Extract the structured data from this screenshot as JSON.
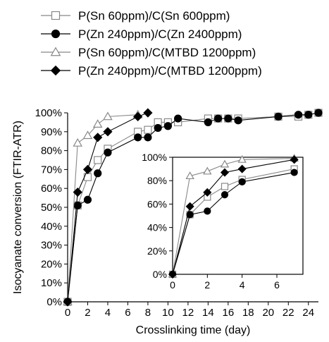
{
  "chart_data": [
    {
      "type": "line",
      "panel": "main",
      "xlabel": "Crosslinking time (day)",
      "ylabel": "Isocyanate conversion (FTIR-ATR)",
      "xlim": [
        0,
        25
      ],
      "ylim": [
        0,
        100
      ],
      "xticks": [
        0,
        2,
        4,
        6,
        8,
        10,
        12,
        14,
        16,
        18,
        20,
        22,
        24
      ],
      "xtick_labels": [
        "0",
        "2",
        "4",
        "6",
        "8",
        "10",
        "12",
        "14",
        "16",
        "18",
        "20",
        "22",
        "24"
      ],
      "yticks": [
        0,
        10,
        20,
        30,
        40,
        50,
        60,
        70,
        80,
        90,
        100
      ],
      "ytick_labels": [
        "0%",
        "10%",
        "20%",
        "30%",
        "40%",
        "50%",
        "60%",
        "70%",
        "80%",
        "90%",
        "100%"
      ],
      "legend_position": "top",
      "grid": false,
      "series": [
        {
          "name": "P(Sn 60ppm)/C(Sn 600ppm)",
          "marker": "square-open",
          "color": "#888888",
          "x": [
            0,
            1,
            2,
            3,
            4,
            7,
            8,
            9,
            10,
            11,
            14,
            15,
            16,
            17,
            21,
            23,
            24,
            25
          ],
          "y": [
            0,
            51,
            66,
            75,
            81,
            90,
            91,
            95,
            95,
            95,
            97,
            97,
            97,
            97,
            98,
            98,
            99,
            100
          ]
        },
        {
          "name": "P(Zn 240ppm)/C(Zn 2400ppm)",
          "marker": "circle-filled",
          "color": "#000000",
          "x": [
            0,
            1,
            2,
            3,
            4,
            7,
            8,
            9,
            10,
            11,
            14,
            15,
            16,
            17,
            21,
            23,
            24,
            25
          ],
          "y": [
            0,
            51,
            54,
            68,
            79,
            87,
            87,
            92,
            93,
            97,
            95,
            97,
            97,
            96,
            98,
            99,
            99,
            100
          ]
        },
        {
          "name": "P(Sn 60ppm)/C(MTBD 1200ppm)",
          "marker": "triangle-open",
          "color": "#888888",
          "x": [
            0,
            1,
            2,
            3,
            4,
            7
          ],
          "y": [
            0,
            84,
            88,
            94,
            98,
            99
          ]
        },
        {
          "name": "P(Zn 240ppm)/C(MTBD 1200ppm)",
          "marker": "diamond-filled",
          "color": "#000000",
          "x": [
            0,
            1,
            2,
            3,
            4,
            7,
            8
          ],
          "y": [
            0,
            58,
            70,
            87,
            90,
            98,
            100
          ]
        }
      ]
    },
    {
      "type": "line",
      "panel": "inset",
      "xlim": [
        0,
        7.5
      ],
      "ylim": [
        0,
        100
      ],
      "xticks": [
        0,
        2,
        4,
        6
      ],
      "xtick_labels": [
        "0",
        "2",
        "4",
        "6"
      ],
      "yticks": [
        0,
        20,
        40,
        60,
        80,
        100
      ],
      "ytick_labels": [
        "0%",
        "20%",
        "40%",
        "60%",
        "80%",
        "100%"
      ],
      "series": [
        {
          "marker": "square-open",
          "color": "#888888",
          "x": [
            0,
            1,
            2,
            3,
            4,
            7
          ],
          "y": [
            0,
            51,
            66,
            75,
            81,
            90
          ]
        },
        {
          "marker": "circle-filled",
          "color": "#000000",
          "x": [
            0,
            1,
            2,
            3,
            4,
            7
          ],
          "y": [
            0,
            51,
            54,
            68,
            79,
            87
          ]
        },
        {
          "marker": "triangle-open",
          "color": "#888888",
          "x": [
            0,
            1,
            2,
            3,
            4,
            7
          ],
          "y": [
            0,
            84,
            88,
            94,
            98,
            99
          ]
        },
        {
          "marker": "diamond-filled",
          "color": "#000000",
          "x": [
            0,
            1,
            2,
            3,
            4,
            7
          ],
          "y": [
            0,
            58,
            70,
            87,
            90,
            98
          ]
        }
      ]
    }
  ]
}
